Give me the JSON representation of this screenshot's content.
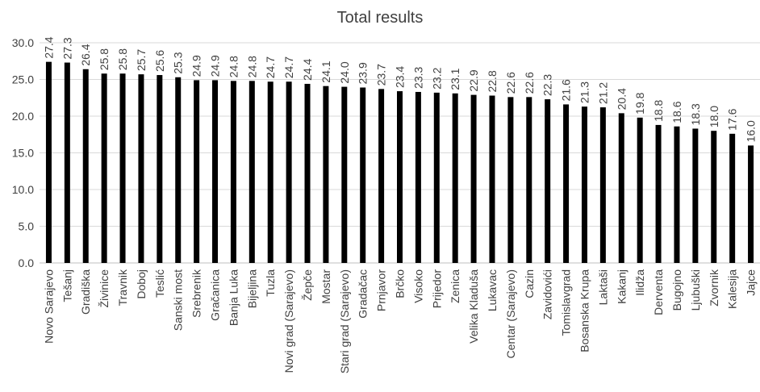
{
  "chart_data": {
    "type": "bar",
    "title": "Total results",
    "xlabel": "",
    "ylabel": "",
    "ylim": [
      0,
      30
    ],
    "ytick_step": 5,
    "ytick_labels": [
      "0.0",
      "5.0",
      "10.0",
      "15.0",
      "20.0",
      "25.0",
      "30.0"
    ],
    "grid": true,
    "legend": "none",
    "bar_color": "#000000",
    "categories": [
      "Novo Sarajevo",
      "Tešanj",
      "Gradiška",
      "Živinice",
      "Travnik",
      "Doboj",
      "Teslić",
      "Sanski most",
      "Srebrenik",
      "Gračanica",
      "Banja Luka",
      "Bijeljina",
      "Tuzla",
      "Novi grad (Sarajevo)",
      "Žepče",
      "Mostar",
      "Stari grad (Sarajevo)",
      "Gradačac",
      "Prnjavor",
      "Brčko",
      "Visoko",
      "Prijedor",
      "Zenica",
      "Velika Kladuša",
      "Lukavac",
      "Centar (Sarajevo)",
      "Cazin",
      "Zavidovići",
      "Tomislavgrad",
      "Bosanska Krupa",
      "Laktaši",
      "Kakanj",
      "Ilidža",
      "Derventa",
      "Bugojno",
      "Ljubuški",
      "Zvornik",
      "Kalesija",
      "Jajce"
    ],
    "values": [
      27.4,
      27.3,
      26.4,
      25.8,
      25.8,
      25.7,
      25.6,
      25.3,
      24.9,
      24.9,
      24.8,
      24.8,
      24.7,
      24.7,
      24.4,
      24.1,
      24.0,
      23.9,
      23.7,
      23.4,
      23.3,
      23.2,
      23.1,
      22.9,
      22.8,
      22.6,
      22.6,
      22.3,
      21.6,
      21.3,
      21.2,
      20.4,
      19.8,
      18.8,
      18.6,
      18.3,
      18.0,
      17.6,
      16.0
    ],
    "value_labels": [
      "27.4",
      "27.3",
      "26.4",
      "25.8",
      "25.8",
      "25.7",
      "25.6",
      "25.3",
      "24.9",
      "24.9",
      "24.8",
      "24.8",
      "24.7",
      "24.7",
      "24.4",
      "24.1",
      "24.0",
      "23.9",
      "23.7",
      "23.4",
      "23.3",
      "23.2",
      "23.1",
      "22.9",
      "22.8",
      "22.6",
      "22.6",
      "22.3",
      "21.6",
      "21.3",
      "21.2",
      "20.4",
      "19.8",
      "18.8",
      "18.6",
      "18.3",
      "18.0",
      "17.6",
      "16.0"
    ]
  }
}
